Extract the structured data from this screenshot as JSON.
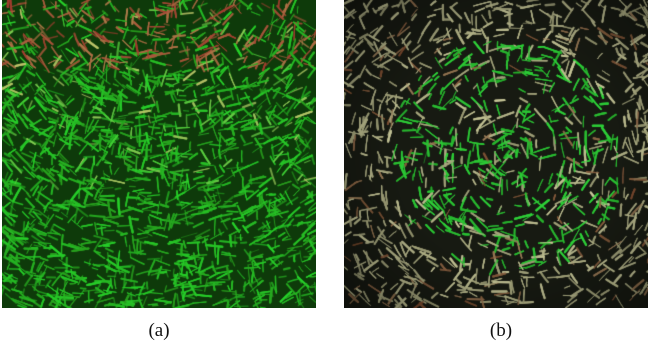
{
  "figures": [
    {
      "id": "a",
      "label": "(a)",
      "pattern": "arcs-around-top-center",
      "colors": {
        "background": "#0e3a0a",
        "primary": "#27d12a",
        "secondary": "#bfc46a",
        "accent": "#a03a2e"
      }
    },
    {
      "id": "b",
      "label": "(b)",
      "pattern": "concentric-circles",
      "colors": {
        "background": "#171a12",
        "primary": "#2fd53a",
        "secondary": "#c9c99a",
        "accent": "#7a4a2e"
      }
    }
  ]
}
